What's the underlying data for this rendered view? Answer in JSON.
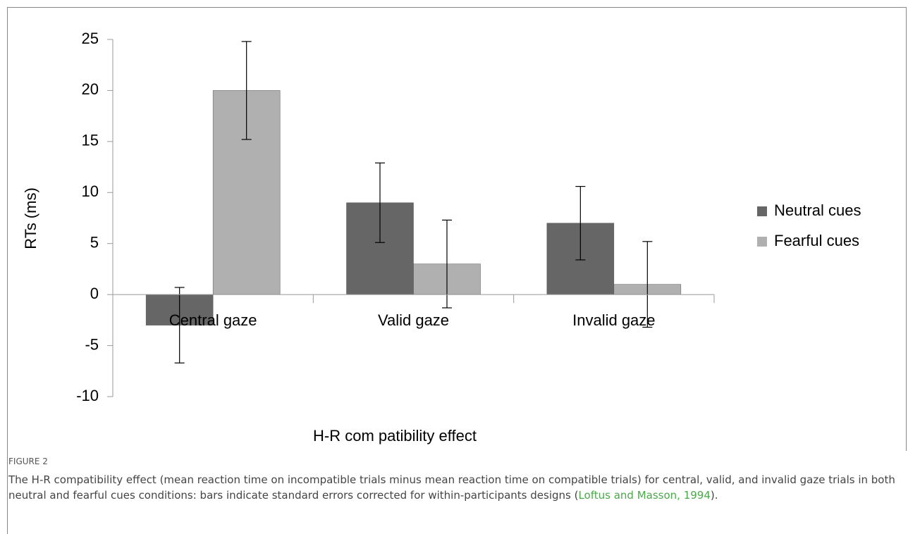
{
  "chart_data": {
    "type": "bar",
    "y_label": "RTs (ms)",
    "x_label": "H-R com patibility effect",
    "categories": [
      "Central gaze",
      "Valid gaze",
      "Invalid gaze"
    ],
    "series": [
      {
        "name": "Neutral cues",
        "color": "#666666",
        "values": [
          -3,
          9,
          7
        ],
        "errors": [
          3.7,
          3.9,
          3.6
        ]
      },
      {
        "name": "Fearful cues",
        "color": "#b0b0b0",
        "values": [
          20,
          3,
          1
        ],
        "errors": [
          4.8,
          4.3,
          4.2
        ]
      }
    ],
    "ylim": [
      -10,
      25
    ],
    "yticks": [
      -10,
      -5,
      0,
      5,
      10,
      15,
      20,
      25
    ],
    "legend": "right"
  },
  "caption": {
    "label": "FIGURE 2",
    "text_before": "The H-R compatibility effect (mean reaction time on incompatible trials minus mean reaction time on compatible trials) for central, valid, and invalid gaze trials in both neutral and fearful cues conditions: bars indicate standard errors corrected for within-participants designs (",
    "citation": "Loftus and Masson, 1994",
    "text_after": ")."
  }
}
